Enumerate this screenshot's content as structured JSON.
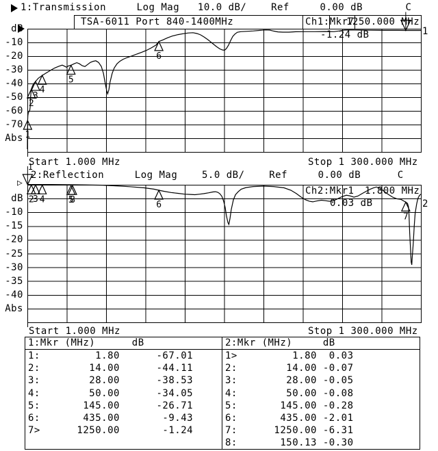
{
  "window": {
    "bg": "#ffffff",
    "fg": "#000000"
  },
  "channels": [
    {
      "index": "1",
      "title": "1:Transmission     Log Mag   10.0 dB/    Ref     0.00 dB       C",
      "band": {
        "model": "TSA-6011 Port 840-1400MHz",
        "marker_readout_label": "Ch1:Mkr7",
        "marker_freq": "1250.000 MHz"
      },
      "marker_value": "-1.24 dB",
      "start": "Start 1.000 MHz",
      "stop": "Stop 1 300.000 MHz",
      "trace_end_label": "1",
      "axis_unit": "dB",
      "axis_labels": [
        {
          "text": "dB",
          "line": 0
        },
        {
          "text": "-10",
          "line": 1
        },
        {
          "text": "-20",
          "line": 2
        },
        {
          "text": "-30",
          "line": 3
        },
        {
          "text": "-40",
          "line": 4
        },
        {
          "text": "-50",
          "line": 5
        },
        {
          "text": "-60",
          "line": 6
        },
        {
          "text": "-70",
          "line": 7
        },
        {
          "text": "Abs",
          "line": 8
        }
      ],
      "chart_data": {
        "type": "line",
        "series_name": "Transmission",
        "xlabel": "MHz",
        "ylabel": "dB",
        "x_range": [
          1,
          1300
        ],
        "db_per_div": 10,
        "ref_db": 0,
        "points": [
          [
            1,
            -88
          ],
          [
            1.3,
            -80
          ],
          [
            1.8,
            -67
          ],
          [
            2.5,
            -63.5
          ],
          [
            4,
            -61.5
          ],
          [
            7,
            -60.3
          ],
          [
            9,
            -59.5
          ],
          [
            10,
            -57.5
          ],
          [
            11,
            -52
          ],
          [
            12.5,
            -47.5
          ],
          [
            14,
            -44.1
          ],
          [
            17,
            -42.3
          ],
          [
            21,
            -40.3
          ],
          [
            28,
            -38.5
          ],
          [
            37,
            -36.2
          ],
          [
            50,
            -34.1
          ],
          [
            64,
            -32.2
          ],
          [
            78,
            -30.3
          ],
          [
            91,
            -28.7
          ],
          [
            105,
            -27.4
          ],
          [
            116,
            -26.6
          ],
          [
            123,
            -27.3
          ],
          [
            130,
            -28.1
          ],
          [
            137,
            -27.1
          ],
          [
            145,
            -26.7
          ],
          [
            155,
            -25.6
          ],
          [
            164,
            -24.8
          ],
          [
            173,
            -25.6
          ],
          [
            182,
            -27
          ],
          [
            191,
            -27.6
          ],
          [
            200,
            -26.1
          ],
          [
            209,
            -24.6
          ],
          [
            218,
            -23.8
          ],
          [
            227,
            -23.4
          ],
          [
            236,
            -24.6
          ],
          [
            245,
            -27.5
          ],
          [
            252,
            -32.5
          ],
          [
            258,
            -40
          ],
          [
            263,
            -45.5
          ],
          [
            266,
            -47.5
          ],
          [
            270,
            -44.5
          ],
          [
            274,
            -39
          ],
          [
            281,
            -32.6
          ],
          [
            288,
            -28.6
          ],
          [
            297,
            -25.6
          ],
          [
            306,
            -23.8
          ],
          [
            317,
            -22.3
          ],
          [
            331,
            -21
          ],
          [
            347,
            -19.8
          ],
          [
            362,
            -18.5
          ],
          [
            378,
            -17.2
          ],
          [
            394,
            -15.8
          ],
          [
            410,
            -14
          ],
          [
            426,
            -11.9
          ],
          [
            435,
            -9.4
          ],
          [
            449,
            -8.1
          ],
          [
            464,
            -6.6
          ],
          [
            480,
            -5.3
          ],
          [
            498,
            -4.3
          ],
          [
            516,
            -3.6
          ],
          [
            532,
            -3.1
          ],
          [
            548,
            -2.9
          ],
          [
            561,
            -3.5
          ],
          [
            573,
            -4.5
          ],
          [
            584,
            -6
          ],
          [
            597,
            -8
          ],
          [
            611,
            -10.5
          ],
          [
            625,
            -13
          ],
          [
            636,
            -14.7
          ],
          [
            645,
            -15.5
          ],
          [
            652,
            -15.7
          ],
          [
            658,
            -14.5
          ],
          [
            665,
            -12
          ],
          [
            672,
            -8.6
          ],
          [
            679,
            -5.6
          ],
          [
            686,
            -3.9
          ],
          [
            694,
            -2.6
          ],
          [
            706,
            -2.1
          ],
          [
            724,
            -1.9
          ],
          [
            747,
            -1.6
          ],
          [
            769,
            -1.2
          ],
          [
            787,
            -0.9
          ],
          [
            801,
            -1
          ],
          [
            814,
            -1.7
          ],
          [
            828,
            -2.3
          ],
          [
            844,
            -2.5
          ],
          [
            864,
            -2.5
          ],
          [
            887,
            -2.2
          ],
          [
            916,
            -2.1
          ],
          [
            950,
            -2.1
          ],
          [
            984,
            -2
          ],
          [
            1013,
            -2.1
          ],
          [
            1031,
            -1.6
          ],
          [
            1047,
            -1
          ],
          [
            1067,
            -0.9
          ],
          [
            1097,
            -1
          ],
          [
            1131,
            -1.1
          ],
          [
            1176,
            -1.2
          ],
          [
            1221,
            -1.2
          ],
          [
            1250,
            -1.24
          ],
          [
            1300,
            -1.25
          ]
        ],
        "markers": [
          {
            "n": "1",
            "mhz": 1.8,
            "db": -67.01
          },
          {
            "n": "2",
            "mhz": 14,
            "db": -44.11
          },
          {
            "n": "3",
            "mhz": 28,
            "db": -38.53
          },
          {
            "n": "4",
            "mhz": 50,
            "db": -34.05
          },
          {
            "n": "5",
            "mhz": 145,
            "db": -26.71
          },
          {
            "n": "6",
            "mhz": 435,
            "db": -9.43
          },
          {
            "n": "7",
            "mhz": 1250,
            "db": -1.24,
            "active": true,
            "show_label": false
          }
        ]
      }
    },
    {
      "index": "2",
      "title": "2:Reflection     Log Mag    5.0 dB/    Ref     0.00 dB      C",
      "band": {
        "marker_readout_label": "Ch2:Mkr1",
        "marker_freq": "1.800 MHz"
      },
      "marker_value": "0.03 dB",
      "start": "Start 1.000 MHz",
      "stop": "Stop 1 300.000 MHz",
      "trace_end_label": "2",
      "axis_unit": "dB",
      "axis_labels": [
        {
          "text": "dB",
          "line": 1
        },
        {
          "text": "-10",
          "line": 2
        },
        {
          "text": "-15",
          "line": 3
        },
        {
          "text": "-20",
          "line": 4
        },
        {
          "text": "-25",
          "line": 5
        },
        {
          "text": "-30",
          "line": 6
        },
        {
          "text": "-35",
          "line": 7
        },
        {
          "text": "-40",
          "line": 8
        },
        {
          "text": "Abs",
          "line": 9
        }
      ],
      "chart_data": {
        "type": "line",
        "series_name": "Reflection",
        "xlabel": "MHz",
        "ylabel": "dB",
        "x_range": [
          1,
          1300
        ],
        "db_per_div": 5,
        "ref_db": 0,
        "points": [
          [
            1,
            0.1
          ],
          [
            80,
            0.1
          ],
          [
            160,
            0
          ],
          [
            250,
            -0.15
          ],
          [
            295,
            -0.4
          ],
          [
            340,
            -0.7
          ],
          [
            385,
            -1.1
          ],
          [
            419,
            -1.6
          ],
          [
            435,
            -2
          ],
          [
            453,
            -2.4
          ],
          [
            475,
            -2.8
          ],
          [
            498,
            -3.1
          ],
          [
            520,
            -3.4
          ],
          [
            539,
            -3.5
          ],
          [
            554,
            -3.6
          ],
          [
            570,
            -3.4
          ],
          [
            584,
            -3.2
          ],
          [
            600,
            -2.9
          ],
          [
            613,
            -2.6
          ],
          [
            622,
            -2.5
          ],
          [
            629,
            -2.7
          ],
          [
            636,
            -3.2
          ],
          [
            643,
            -4.2
          ],
          [
            649,
            -6
          ],
          [
            654,
            -8.2
          ],
          [
            658,
            -11.2
          ],
          [
            663,
            -13.7
          ],
          [
            666,
            -14.4
          ],
          [
            670,
            -12.2
          ],
          [
            674,
            -9
          ],
          [
            681,
            -5.5
          ],
          [
            688,
            -3.6
          ],
          [
            697,
            -2.5
          ],
          [
            707,
            -1.6
          ],
          [
            723,
            -1
          ],
          [
            746,
            -0.65
          ],
          [
            780,
            -0.5
          ],
          [
            814,
            -0.65
          ],
          [
            848,
            -1.1
          ],
          [
            871,
            -2
          ],
          [
            889,
            -3.2
          ],
          [
            905,
            -4.5
          ],
          [
            920,
            -5.5
          ],
          [
            932,
            -6
          ],
          [
            943,
            -6.2
          ],
          [
            956,
            -5.9
          ],
          [
            972,
            -5.6
          ],
          [
            986,
            -5.8
          ],
          [
            999,
            -6
          ],
          [
            1013,
            -5.7
          ],
          [
            1027,
            -5
          ],
          [
            1040,
            -4.3
          ],
          [
            1054,
            -3.8
          ],
          [
            1065,
            -4
          ],
          [
            1079,
            -4.5
          ],
          [
            1092,
            -4.1
          ],
          [
            1106,
            -3.2
          ],
          [
            1119,
            -2.4
          ],
          [
            1133,
            -1.6
          ],
          [
            1144,
            -1.1
          ],
          [
            1153,
            -0.8
          ],
          [
            1162,
            -1.1
          ],
          [
            1171,
            -1.7
          ],
          [
            1182,
            -2.7
          ],
          [
            1194,
            -3.6
          ],
          [
            1207,
            -4.5
          ],
          [
            1221,
            -5.1
          ],
          [
            1234,
            -5.3
          ],
          [
            1250,
            -6.31
          ],
          [
            1256,
            -6.8
          ],
          [
            1259,
            -8
          ],
          [
            1261,
            -11.2
          ],
          [
            1263,
            -17.4
          ],
          [
            1266,
            -23.6
          ],
          [
            1268,
            -28.1
          ],
          [
            1270,
            -29.1
          ],
          [
            1271,
            -26.9
          ],
          [
            1275,
            -21.1
          ],
          [
            1278,
            -14.9
          ],
          [
            1281,
            -10.4
          ],
          [
            1286,
            -7
          ],
          [
            1290,
            -5
          ],
          [
            1295,
            -3.9
          ],
          [
            1300,
            -3.4
          ]
        ],
        "markers": [
          {
            "n": "1",
            "mhz": 1.8,
            "db": 0.03,
            "active": true,
            "show_label": true
          },
          {
            "n": "2",
            "mhz": 14,
            "db": -0.07
          },
          {
            "n": "3",
            "mhz": 28,
            "db": -0.05
          },
          {
            "n": "4",
            "mhz": 50,
            "db": -0.08
          },
          {
            "n": "5",
            "mhz": 145,
            "db": -0.28
          },
          {
            "n": "6",
            "mhz": 435,
            "db": -2.01
          },
          {
            "n": "7",
            "mhz": 1250,
            "db": -6.31
          },
          {
            "n": "8",
            "mhz": 150.13,
            "db": -0.3
          }
        ]
      }
    }
  ],
  "tables": [
    {
      "header": "1:Mkr (MHz)      dB",
      "rows": [
        "1:         1.80      -67.01",
        "2:        14.00      -44.11",
        "3:        28.00      -38.53",
        "4:        50.00      -34.05",
        "5:       145.00      -26.71",
        "6:       435.00       -9.43",
        "7>      1250.00       -1.24",
        ""
      ]
    },
    {
      "header": "2:Mkr (MHz)     dB",
      "rows": [
        "1>         1.80  0.03",
        "2:        14.00 -0.07",
        "3:        28.00 -0.05",
        "4:        50.00 -0.08",
        "5:       145.00 -0.28",
        "6:       435.00 -2.01",
        "7:      1250.00 -6.31",
        "8:       150.13 -0.30"
      ]
    }
  ]
}
